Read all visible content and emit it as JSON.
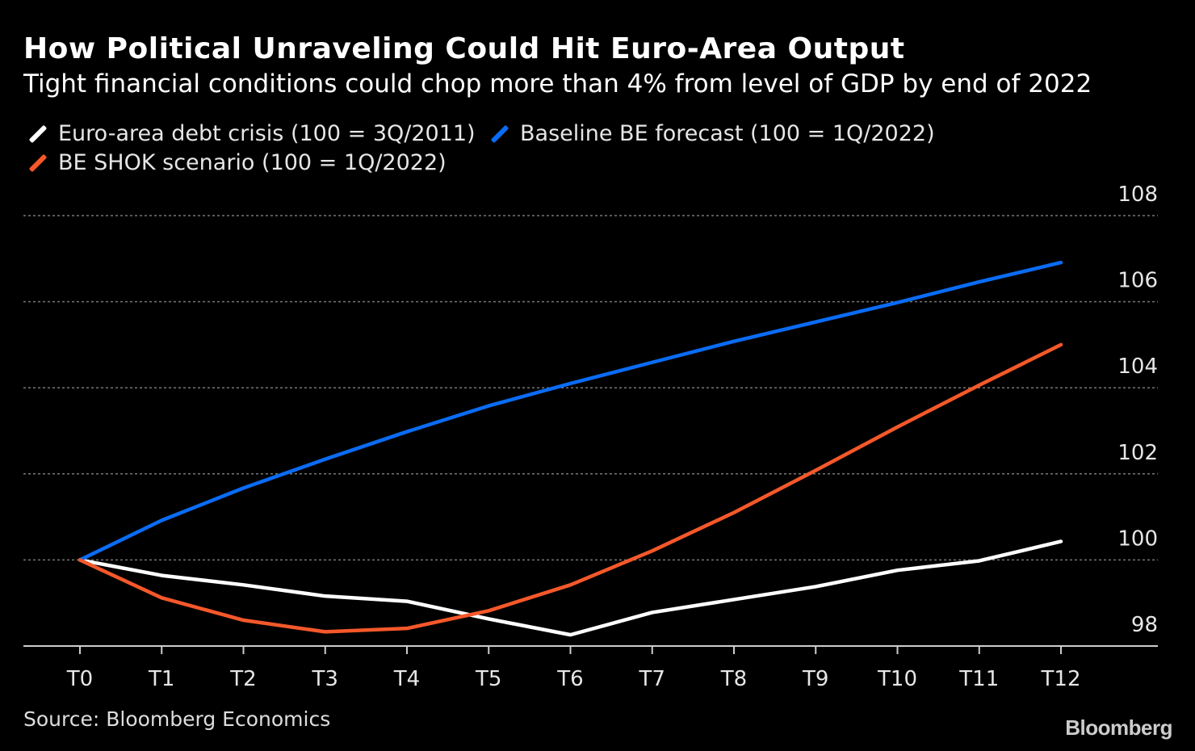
{
  "title": "How Political Unraveling Could Hit Euro-Area Output",
  "subtitle": "Tight financial conditions could chop more than 4% from level of GDP by end of 2022",
  "source": "Source: Bloomberg Economics",
  "logo": "Bloomberg",
  "chart_data": {
    "type": "line",
    "x": [
      "T0",
      "T1",
      "T2",
      "T3",
      "T4",
      "T5",
      "T6",
      "T7",
      "T8",
      "T9",
      "T10",
      "T11",
      "T12"
    ],
    "ylim": [
      98,
      108
    ],
    "yticks": [
      98,
      100,
      102,
      104,
      106,
      108
    ],
    "grid": true,
    "legend_position": "top-left",
    "series": [
      {
        "name": "Euro-area debt crisis (100 = 3Q/2011)",
        "color": "#ffffff",
        "values": [
          100,
          99.64,
          99.42,
          99.16,
          99.04,
          98.63,
          98.26,
          98.78,
          99.08,
          99.38,
          99.76,
          99.98,
          100.43
        ]
      },
      {
        "name": "Baseline BE forecast (100 = 1Q/2022)",
        "color": "#0a6cf5",
        "values": [
          100,
          100.92,
          101.67,
          102.34,
          102.98,
          103.58,
          104.1,
          104.59,
          105.08,
          105.53,
          105.98,
          106.46,
          106.91
        ]
      },
      {
        "name": "BE SHOK scenario (100 = 1Q/2022)",
        "color": "#f5582a",
        "values": [
          100,
          99.12,
          98.6,
          98.33,
          98.41,
          98.82,
          99.42,
          100.21,
          101.1,
          102.08,
          103.09,
          104.06,
          105.0
        ]
      }
    ]
  }
}
